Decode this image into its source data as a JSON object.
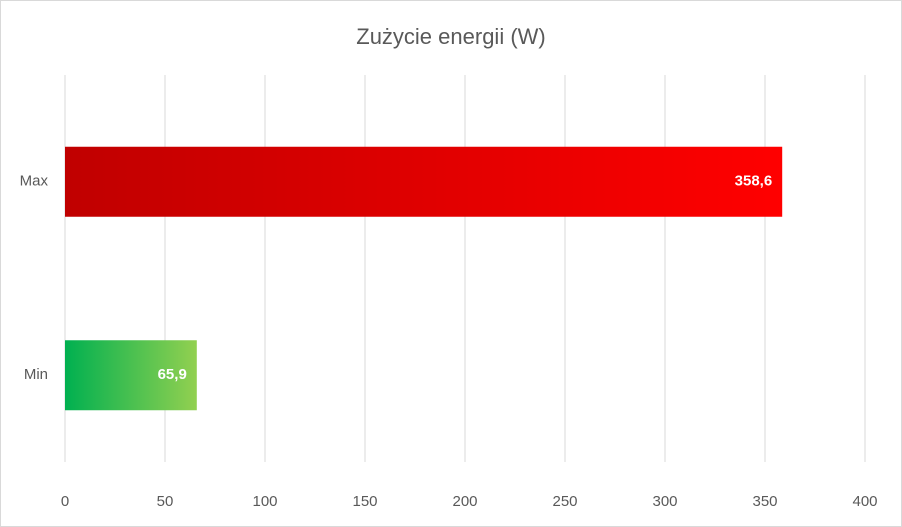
{
  "chart_data": {
    "type": "bar",
    "orientation": "horizontal",
    "title": "Zużycie energii (W)",
    "categories": [
      "Max",
      "Min"
    ],
    "values": [
      358.6,
      65.9
    ],
    "value_labels": [
      "358,6",
      "65,9"
    ],
    "colors": [
      [
        "#c00000",
        "#ff0000"
      ],
      [
        "#00b050",
        "#92d050"
      ]
    ],
    "xlim": [
      0,
      400
    ],
    "xticks": [
      0,
      50,
      100,
      150,
      200,
      250,
      300,
      350,
      400
    ],
    "grid": true
  }
}
